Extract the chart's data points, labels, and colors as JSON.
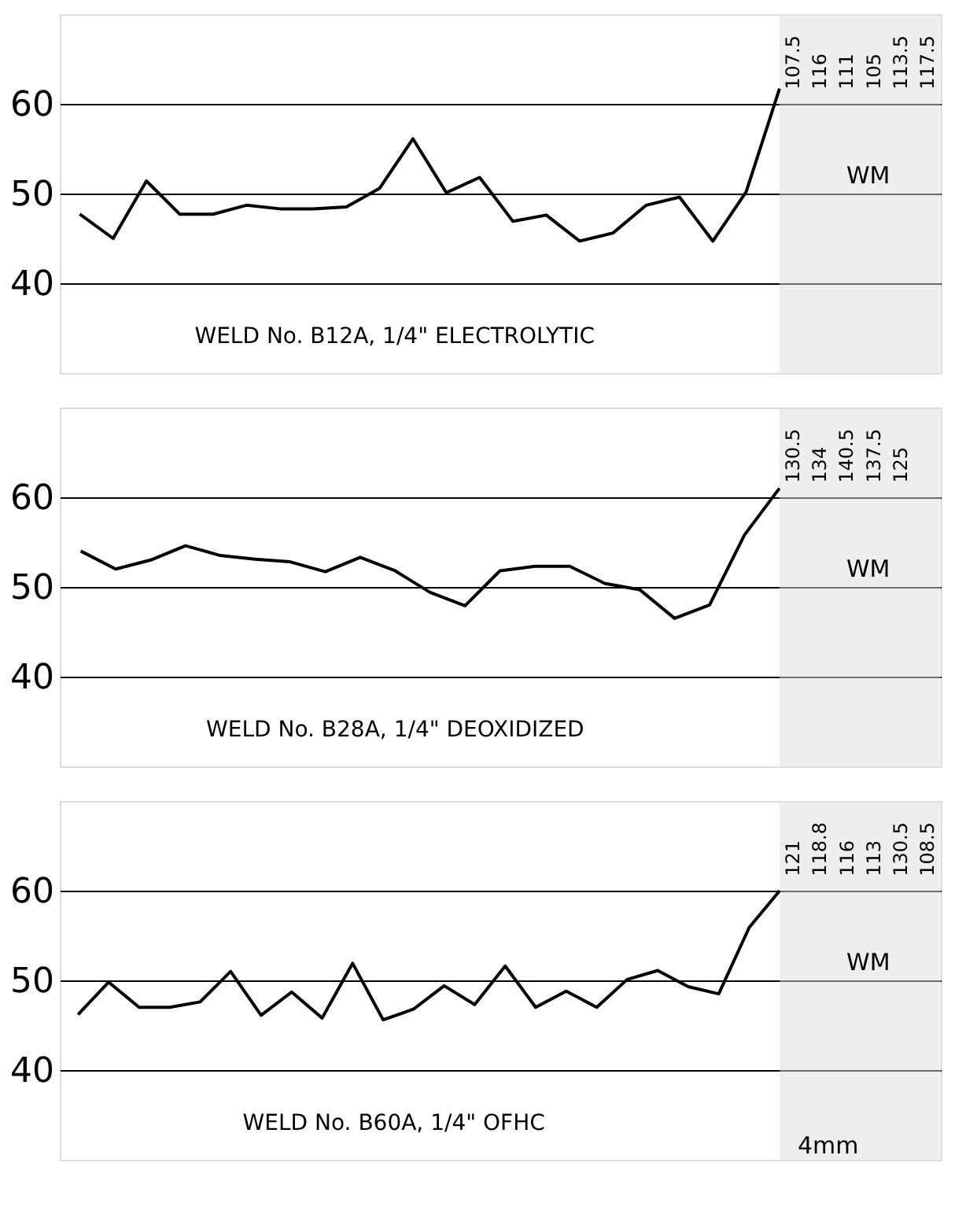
{
  "chart_data": [
    {
      "type": "line",
      "title": "WELD No. B12A, 1/4\" ELECTROLYTIC",
      "categories": [
        null,
        null,
        null,
        null,
        null,
        null,
        null,
        null,
        null,
        null,
        null,
        null,
        null,
        null,
        null,
        null,
        null,
        null,
        null,
        null,
        null,
        null
      ],
      "series": [
        {
          "color": "#000000",
          "values": [
            47.7,
            45.0,
            51.4,
            47.7,
            47.7,
            48.7,
            48.3,
            48.3,
            48.5,
            50.6,
            56.1,
            50.1,
            51.8,
            46.9,
            47.6,
            44.7,
            45.6,
            48.7,
            49.6,
            44.7,
            50.2,
            61.7
          ]
        }
      ],
      "ylim": [
        30,
        70
      ],
      "yticks": [
        40,
        50,
        60
      ],
      "grid": "y",
      "annotations": [
        "WM",
        "107.5",
        "116",
        "111",
        "105",
        "113.5",
        "117.5"
      ]
    },
    {
      "type": "line",
      "title": "WELD No. B28A, 1/4\" DEOXIDIZED",
      "categories": [
        null,
        null,
        null,
        null,
        null,
        null,
        null,
        null,
        null,
        null,
        null,
        null,
        null,
        null,
        null,
        null,
        null,
        null,
        null,
        null,
        null
      ],
      "series": [
        {
          "color": "#000000",
          "values": [
            54.0,
            52.0,
            53.0,
            54.6,
            53.5,
            53.1,
            52.8,
            51.7,
            53.3,
            51.8,
            49.4,
            47.9,
            51.8,
            52.3,
            52.3,
            50.4,
            49.7,
            46.5,
            48.0,
            55.8,
            61.0
          ]
        }
      ],
      "ylim": [
        30,
        70
      ],
      "yticks": [
        40,
        50,
        60
      ],
      "grid": "y",
      "annotations": [
        "WM",
        "130.5",
        "134",
        "140.5",
        "137.5",
        "125"
      ]
    },
    {
      "type": "line",
      "title": "WELD No. B60A, 1/4\" OFHC",
      "categories": [
        null,
        null,
        null,
        null,
        null,
        null,
        null,
        null,
        null,
        null,
        null,
        null,
        null,
        null,
        null,
        null,
        null,
        null,
        null,
        null,
        null,
        null,
        null,
        null
      ],
      "series": [
        {
          "color": "#000000",
          "values": [
            46.2,
            49.8,
            47.0,
            47.0,
            47.6,
            51.0,
            46.1,
            48.7,
            45.8,
            51.9,
            45.6,
            46.8,
            49.4,
            47.3,
            51.6,
            47.0,
            48.8,
            47.0,
            50.1,
            51.1,
            49.3,
            48.5,
            55.9,
            60.0
          ]
        }
      ],
      "ylim": [
        30,
        70
      ],
      "yticks": [
        40,
        50,
        60
      ],
      "grid": "y",
      "annotations": [
        "WM",
        "121",
        "118.8",
        "116",
        "113",
        "130.5",
        "108.5",
        "4mm"
      ]
    }
  ]
}
